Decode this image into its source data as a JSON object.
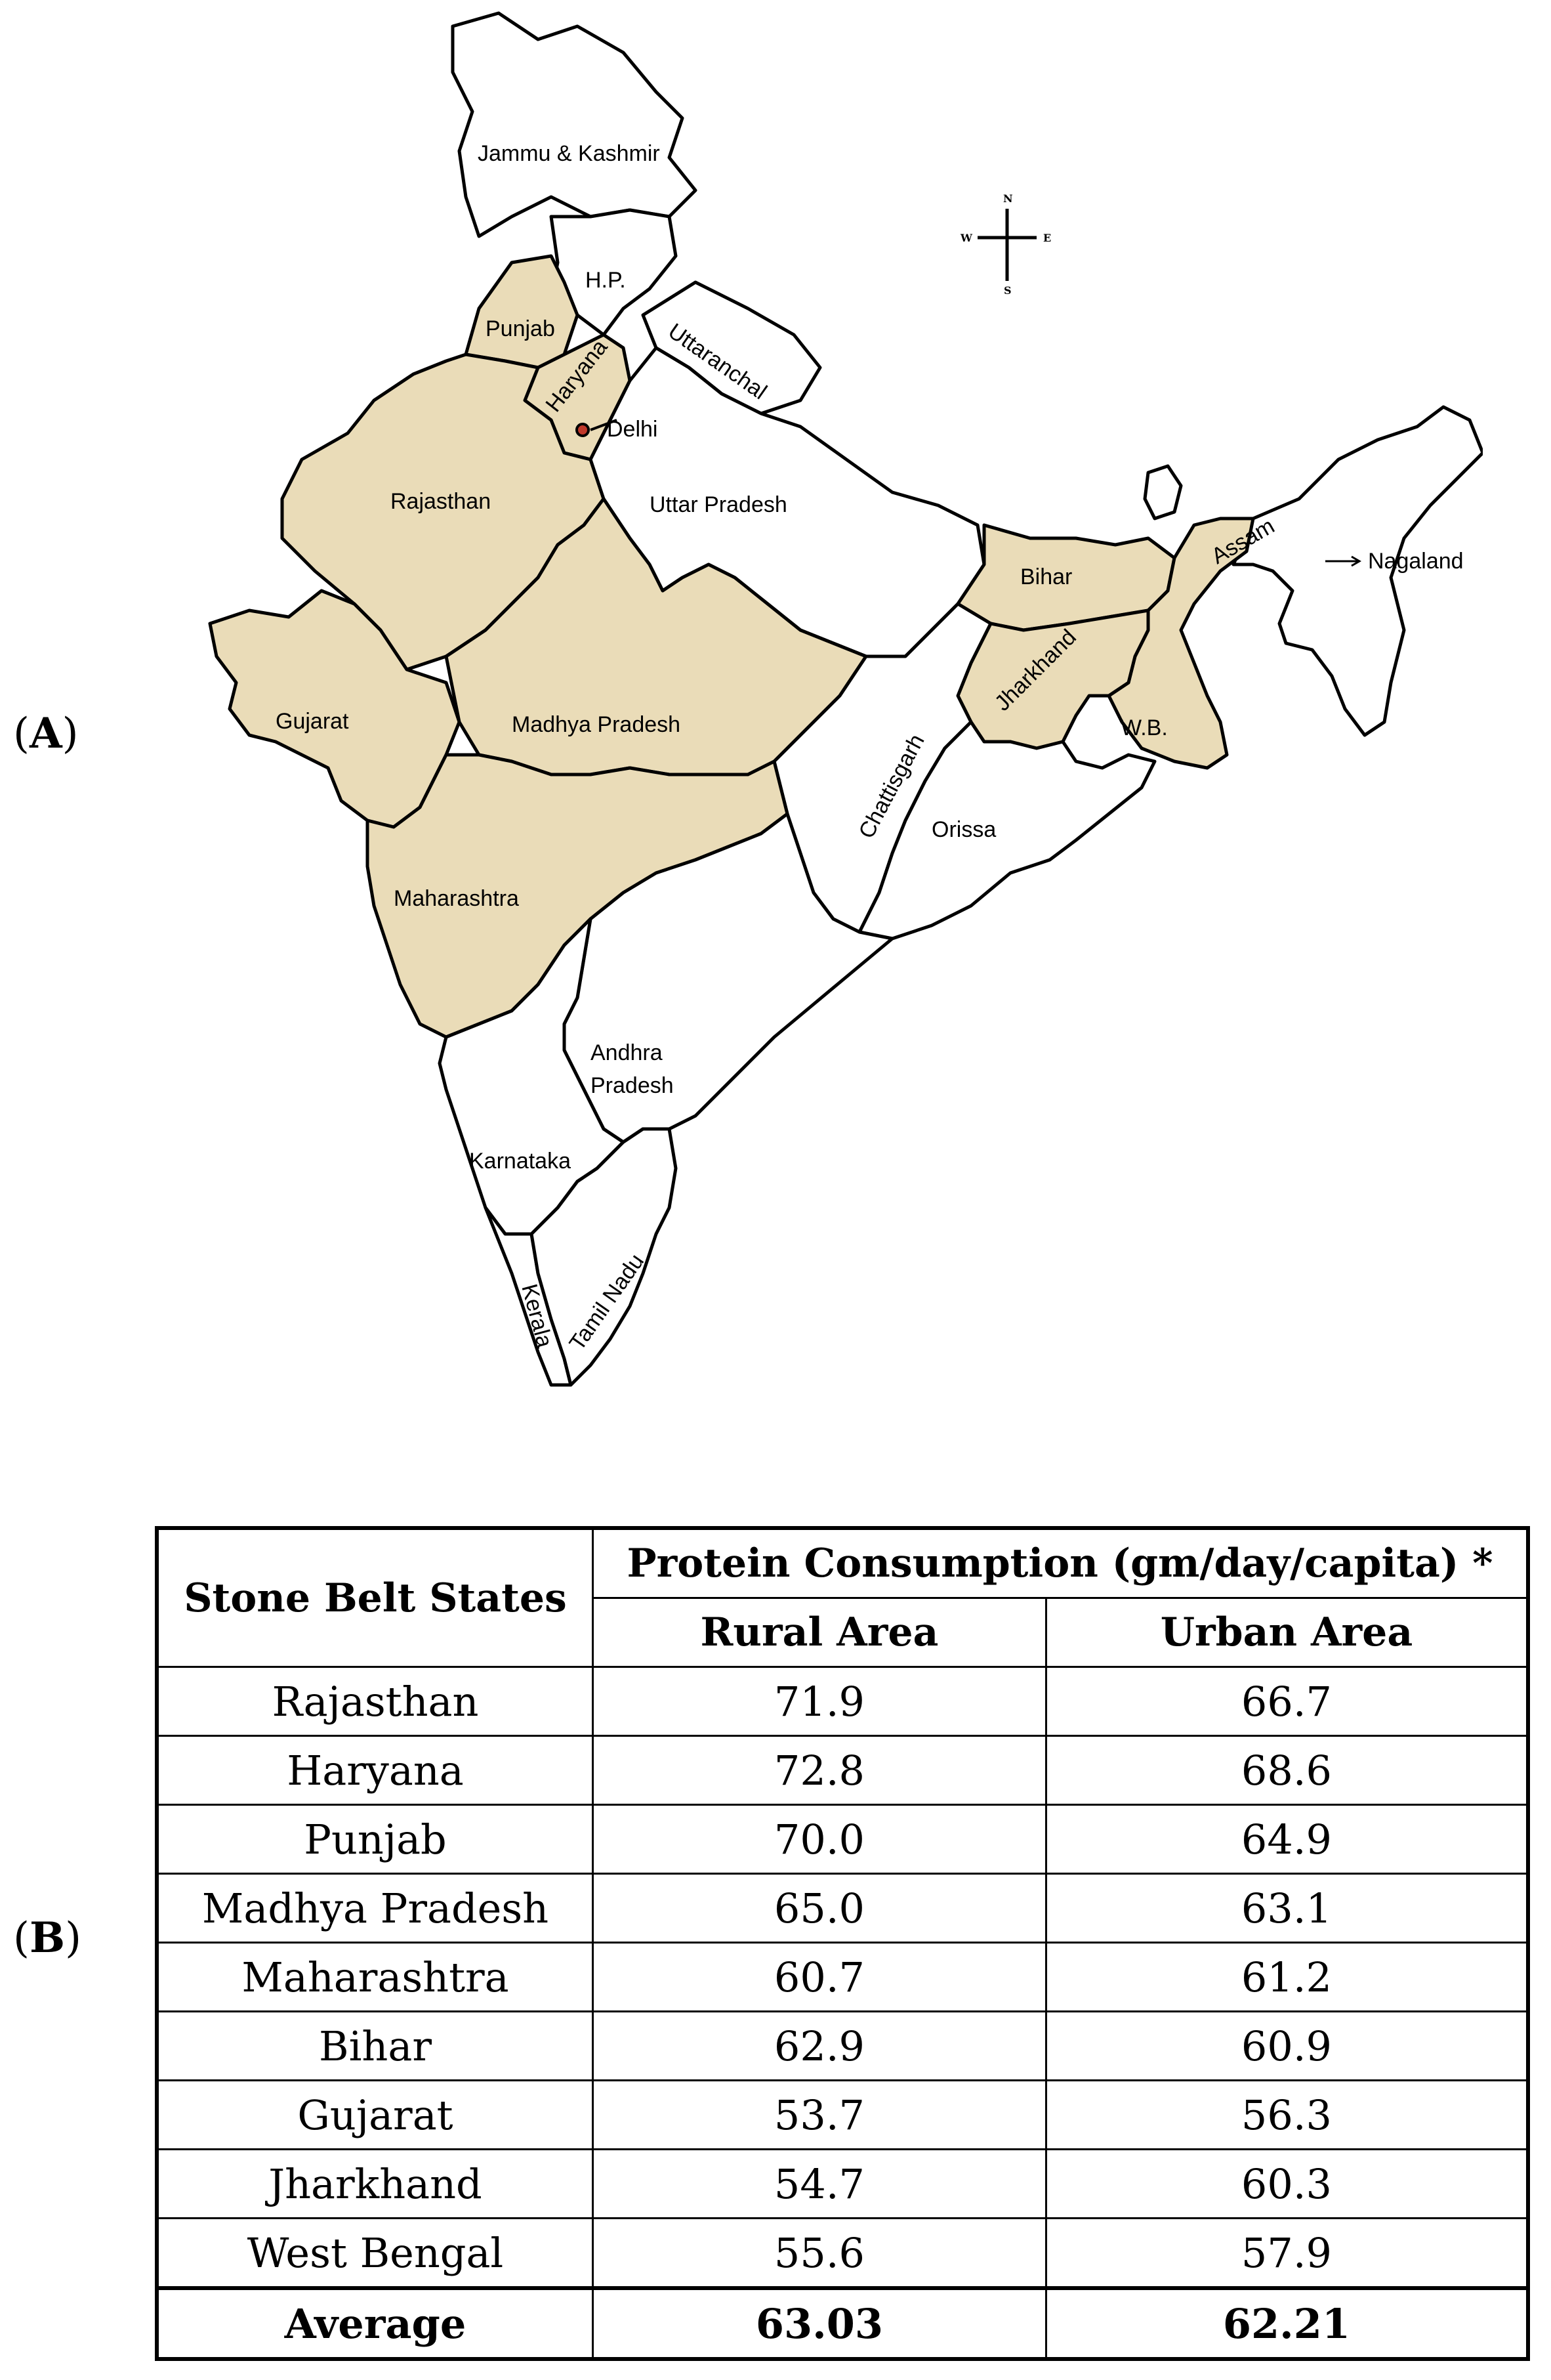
{
  "panels": {
    "a": "A",
    "b": "B"
  },
  "map": {
    "colors": {
      "stone_belt": "#eadcb8",
      "other": "#ffffff",
      "border": "#000000",
      "delhi_marker": "#c0392b"
    },
    "compass": {
      "n": "N",
      "s": "S",
      "e": "E",
      "w": "W"
    },
    "labels": {
      "jk": "Jammu & Kashmir",
      "hp": "H.P.",
      "punjab": "Punjab",
      "haryana": "Haryana",
      "uttaranchal": "Uttaranchal",
      "delhi": "Delhi",
      "rajasthan": "Rajasthan",
      "up": "Uttar Pradesh",
      "bihar": "Bihar",
      "assam": "Assam",
      "nagaland": "Nagaland",
      "gujarat": "Gujarat",
      "mp": "Madhya Pradesh",
      "jharkhand": "Jharkhand",
      "wb": "W.B.",
      "chattisgarh": "Chattisgarh",
      "orissa": "Orissa",
      "maharashtra": "Maharashtra",
      "andhra1": "Andhra",
      "andhra2": "Pradesh",
      "karnataka": "Karnataka",
      "kerala": "Kerala",
      "tamilnadu": "Tamil Nadu"
    }
  },
  "table": {
    "state_header": "Stone Belt States",
    "group_header": "Protein Consumption (gm/day/capita) *",
    "rural_header": "Rural Area",
    "urban_header": "Urban Area",
    "rows": [
      {
        "state": "Rajasthan",
        "rural": "71.9",
        "urban": "66.7"
      },
      {
        "state": "Haryana",
        "rural": "72.8",
        "urban": "68.6"
      },
      {
        "state": "Punjab",
        "rural": "70.0",
        "urban": "64.9"
      },
      {
        "state": "Madhya Pradesh",
        "rural": "65.0",
        "urban": "63.1"
      },
      {
        "state": "Maharashtra",
        "rural": "60.7",
        "urban": "61.2"
      },
      {
        "state": "Bihar",
        "rural": "62.9",
        "urban": "60.9"
      },
      {
        "state": "Gujarat",
        "rural": "53.7",
        "urban": "56.3"
      },
      {
        "state": "Jharkhand",
        "rural": "54.7",
        "urban": "60.3"
      },
      {
        "state": "West Bengal",
        "rural": "55.6",
        "urban": "57.9"
      }
    ],
    "average": {
      "state": "Average",
      "rural": "63.03",
      "urban": "62.21"
    }
  }
}
